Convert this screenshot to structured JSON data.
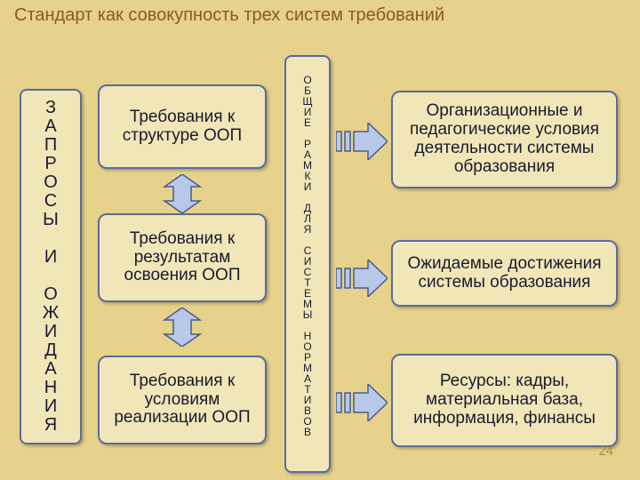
{
  "colors": {
    "background": "#e6d28a",
    "title": "#8a5a1e",
    "box_bg": "#f0e6b8",
    "box_border": "#5b6b9e",
    "text": "#1a1a2e",
    "arrow_fill": "#b8c8e8",
    "arrow_border": "#4a5a8a",
    "slidenum": "#b08a3a"
  },
  "title": "Стандарт как совокупность\nтрех систем требований",
  "left_vertical": "З\nА\nП\nР\nО\nС\nЫ\n\nИ\n\nО\nЖ\nИ\nД\nА\nН\nИ\nЯ",
  "mid": {
    "box1": "Требования к структуре ООП",
    "box2": "Требования к результатам освоения ООП",
    "box3": "Требования к условиям реализации ООП"
  },
  "center_vertical": "О\nБ\nЩ\nИ\nЕ\n\nР\nА\nМ\nК\nИ\n\nД\nЛ\nЯ\n\nС\nИ\nС\nТ\nЕ\nМ\nЫ\n\nН\nО\nР\nМ\nА\nТ\nИ\nВ\nО\nВ",
  "right": {
    "box1": "Организационные и педагогические условия деятельности системы образования",
    "box2": "Ожидаемые достижения системы образования",
    "box3": "Ресурсы: кадры, материальная база, информация, финансы"
  },
  "slide_number": "24",
  "layout": {
    "mid_box_tops": [
      95,
      240,
      400
    ],
    "mid_box_heights": [
      95,
      100,
      100
    ],
    "right_box_tops": [
      102,
      270,
      398
    ],
    "right_box_heights": [
      110,
      75,
      105
    ],
    "ud_arrow_tops": [
      196,
      346
    ],
    "r_arrow_tops": [
      138,
      292,
      432
    ]
  },
  "fonts": {
    "title_size": 20,
    "box_size": 19,
    "vert_left_size": 20,
    "vert_center_size": 12
  }
}
